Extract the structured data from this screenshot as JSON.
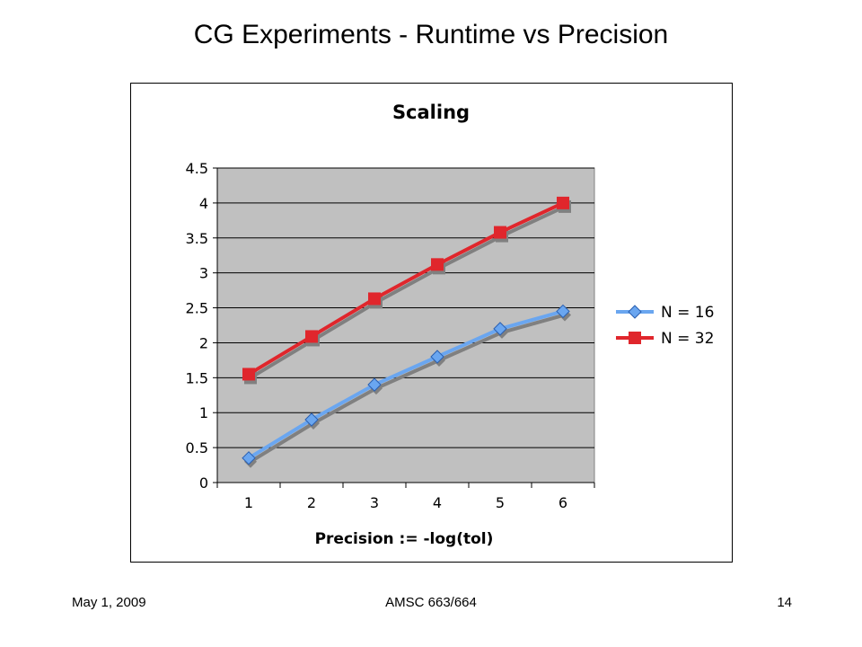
{
  "slide": {
    "title": "CG Experiments  - Runtime vs Precision",
    "footer_left": "May 1, 2009",
    "footer_center": "AMSC 663/664",
    "footer_right": "14"
  },
  "chart_data": {
    "type": "line",
    "title": "Scaling",
    "xlabel": "Precision := -log(tol)",
    "ylabel": "",
    "categories": [
      "1",
      "2",
      "3",
      "4",
      "5",
      "6"
    ],
    "ylim": [
      0,
      4.5
    ],
    "yticks": [
      "0",
      "0.5",
      "1",
      "1.5",
      "2",
      "2.5",
      "3",
      "3.5",
      "4",
      "4.5"
    ],
    "grid": true,
    "legend_position": "right",
    "series": [
      {
        "name": "N = 16",
        "values": [
          0.35,
          0.9,
          1.4,
          1.8,
          2.2,
          2.45
        ],
        "color": "#6aa6f0",
        "marker": "diamond"
      },
      {
        "name": "N = 32",
        "values": [
          1.55,
          2.09,
          2.63,
          3.12,
          3.58,
          4.0
        ],
        "color": "#e0262c",
        "marker": "square"
      }
    ],
    "plot_background": "#c0c0c0"
  }
}
